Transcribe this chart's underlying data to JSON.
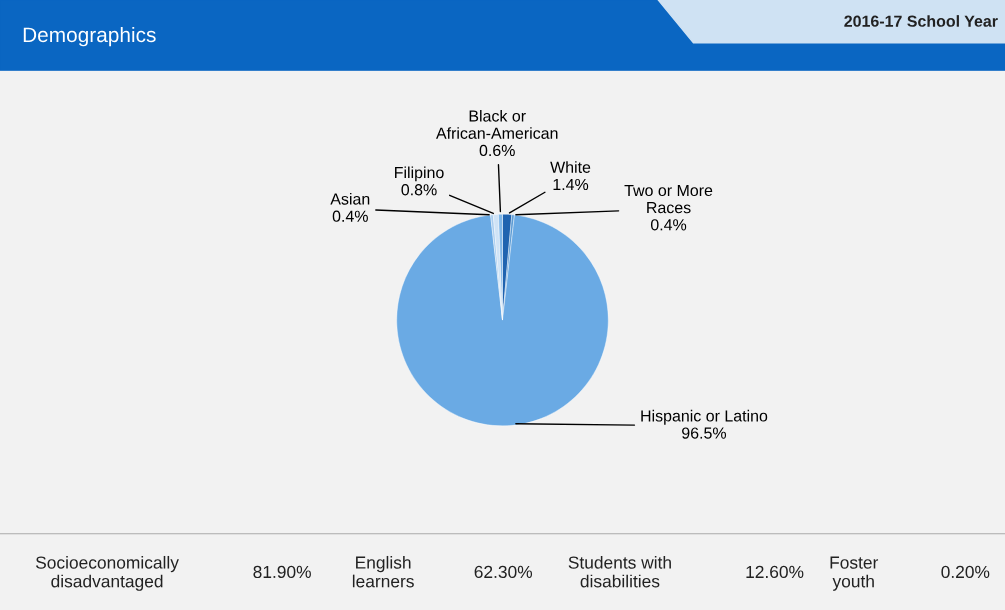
{
  "chart_data": {
    "type": "pie",
    "title": "Demographics",
    "subtitle": "2016-17 School Year",
    "categories": [
      "White",
      "Two or More\nRaces",
      "Hispanic or Latino",
      "Asian",
      "Filipino",
      "Black or\nAfrican-American"
    ],
    "values": [
      1.4,
      0.4,
      96.5,
      0.4,
      0.8,
      0.6
    ],
    "value_labels": [
      "1.4%",
      "0.4%",
      "96.5%",
      "0.4%",
      "0.8%",
      "0.6%"
    ],
    "colors": [
      "#1f63b0",
      "#5b9bd5",
      "#6aaae4",
      "#a9cdef",
      "#cfe3f6",
      "#7fb6e8"
    ],
    "annotations": [
      "Socioeconomically\ndisadvantaged",
      "81.90%",
      "English\nlearners",
      "62.30%",
      "Students with\ndisabilities",
      "12.60%",
      "Foster\nyouth",
      "0.20%"
    ]
  }
}
